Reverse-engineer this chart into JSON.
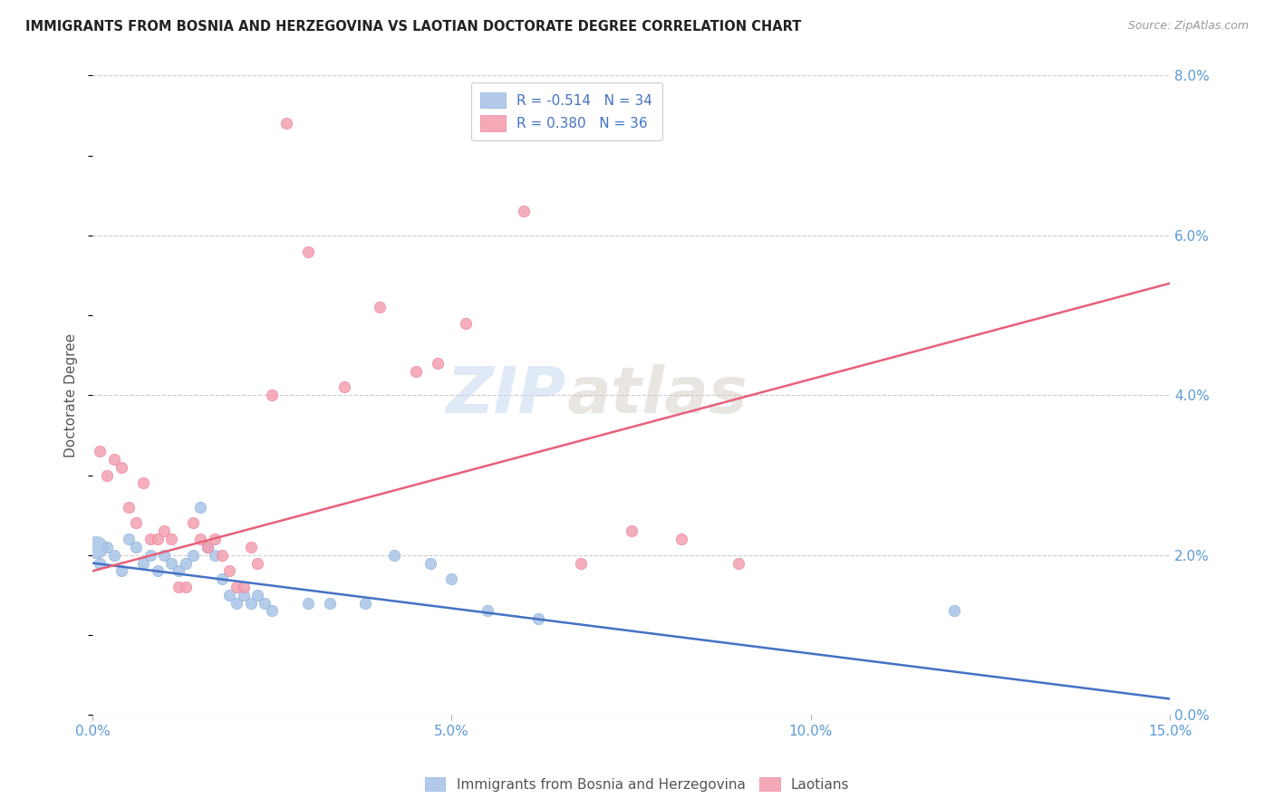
{
  "title": "IMMIGRANTS FROM BOSNIA AND HERZEGOVINA VS LAOTIAN DOCTORATE DEGREE CORRELATION CHART",
  "source": "Source: ZipAtlas.com",
  "ylabel": "Doctorate Degree",
  "xlabel_ticks": [
    "0.0%",
    "5.0%",
    "10.0%",
    "15.0%"
  ],
  "xlabel_vals": [
    0.0,
    0.05,
    0.1,
    0.15
  ],
  "ylabel_ticks": [
    "0.0%",
    "2.0%",
    "4.0%",
    "6.0%",
    "8.0%"
  ],
  "ylabel_vals": [
    0.0,
    0.02,
    0.04,
    0.06,
    0.08
  ],
  "xlim": [
    0.0,
    0.15
  ],
  "ylim": [
    0.0,
    0.08
  ],
  "legend1_label": "Immigrants from Bosnia and Herzegovina",
  "legend2_label": "Laotians",
  "r1": "-0.514",
  "n1": "34",
  "r2": "0.380",
  "n2": "36",
  "color_blue": "#aac4e8",
  "color_pink": "#f4a0b0",
  "color_blue_line": "#4472c4",
  "color_pink_line": "#e8607a",
  "watermark_zip": "ZIP",
  "watermark_atlas": "atlas",
  "background_color": "#ffffff",
  "grid_color": "#cccccc",
  "blue_line_x": [
    0.0,
    0.15
  ],
  "blue_line_y": [
    0.019,
    0.002
  ],
  "pink_line_x": [
    0.0,
    0.15
  ],
  "pink_line_y": [
    0.018,
    0.054
  ],
  "blue_points": [
    [
      0.001,
      0.019
    ],
    [
      0.002,
      0.021
    ],
    [
      0.003,
      0.02
    ],
    [
      0.004,
      0.018
    ],
    [
      0.005,
      0.022
    ],
    [
      0.006,
      0.021
    ],
    [
      0.007,
      0.019
    ],
    [
      0.008,
      0.02
    ],
    [
      0.009,
      0.018
    ],
    [
      0.01,
      0.02
    ],
    [
      0.011,
      0.019
    ],
    [
      0.012,
      0.018
    ],
    [
      0.013,
      0.019
    ],
    [
      0.014,
      0.02
    ],
    [
      0.015,
      0.026
    ],
    [
      0.016,
      0.021
    ],
    [
      0.017,
      0.02
    ],
    [
      0.018,
      0.017
    ],
    [
      0.019,
      0.015
    ],
    [
      0.02,
      0.014
    ],
    [
      0.021,
      0.015
    ],
    [
      0.022,
      0.014
    ],
    [
      0.023,
      0.015
    ],
    [
      0.024,
      0.014
    ],
    [
      0.025,
      0.013
    ],
    [
      0.03,
      0.014
    ],
    [
      0.033,
      0.014
    ],
    [
      0.038,
      0.014
    ],
    [
      0.042,
      0.02
    ],
    [
      0.047,
      0.019
    ],
    [
      0.05,
      0.017
    ],
    [
      0.055,
      0.013
    ],
    [
      0.062,
      0.012
    ],
    [
      0.12,
      0.013
    ]
  ],
  "pink_points": [
    [
      0.001,
      0.033
    ],
    [
      0.002,
      0.03
    ],
    [
      0.003,
      0.032
    ],
    [
      0.004,
      0.031
    ],
    [
      0.005,
      0.026
    ],
    [
      0.006,
      0.024
    ],
    [
      0.007,
      0.029
    ],
    [
      0.008,
      0.022
    ],
    [
      0.009,
      0.022
    ],
    [
      0.01,
      0.023
    ],
    [
      0.011,
      0.022
    ],
    [
      0.012,
      0.016
    ],
    [
      0.013,
      0.016
    ],
    [
      0.014,
      0.024
    ],
    [
      0.015,
      0.022
    ],
    [
      0.016,
      0.021
    ],
    [
      0.017,
      0.022
    ],
    [
      0.018,
      0.02
    ],
    [
      0.019,
      0.018
    ],
    [
      0.02,
      0.016
    ],
    [
      0.021,
      0.016
    ],
    [
      0.022,
      0.021
    ],
    [
      0.023,
      0.019
    ],
    [
      0.025,
      0.04
    ],
    [
      0.027,
      0.074
    ],
    [
      0.03,
      0.058
    ],
    [
      0.035,
      0.041
    ],
    [
      0.04,
      0.051
    ],
    [
      0.045,
      0.043
    ],
    [
      0.048,
      0.044
    ],
    [
      0.052,
      0.049
    ],
    [
      0.06,
      0.063
    ],
    [
      0.068,
      0.019
    ],
    [
      0.075,
      0.023
    ],
    [
      0.082,
      0.022
    ],
    [
      0.09,
      0.019
    ]
  ],
  "blue_large_point": [
    0.0005,
    0.021
  ],
  "blue_large_size": 300
}
